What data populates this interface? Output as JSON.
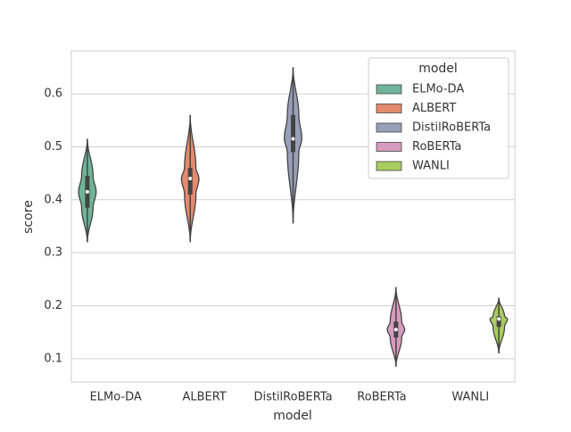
{
  "chart_data": {
    "type": "violin",
    "x_label": "model",
    "y_label": "score",
    "categories": [
      "ELMo-DA",
      "ALBERT",
      "DistilRoBERTa",
      "RoBERTa",
      "WANLI"
    ],
    "series": [
      {
        "name": "ELMo-DA",
        "color": "#6fb39a",
        "stats": {
          "min": 0.32,
          "q1": 0.385,
          "median": 0.415,
          "q3": 0.445,
          "max": 0.515
        }
      },
      {
        "name": "ALBERT",
        "color": "#e48a6e",
        "stats": {
          "min": 0.32,
          "q1": 0.41,
          "median": 0.44,
          "q3": 0.46,
          "max": 0.56
        }
      },
      {
        "name": "DistilRoBERTa",
        "color": "#98a0b8",
        "stats": {
          "min": 0.355,
          "q1": 0.49,
          "median": 0.515,
          "q3": 0.56,
          "max": 0.65
        }
      },
      {
        "name": "RoBERTa",
        "color": "#d79bbf",
        "stats": {
          "min": 0.085,
          "q1": 0.14,
          "median": 0.155,
          "q3": 0.17,
          "max": 0.235
        }
      },
      {
        "name": "WANLI",
        "color": "#a8cc5e",
        "stats": {
          "min": 0.11,
          "q1": 0.16,
          "median": 0.175,
          "q3": 0.18,
          "max": 0.215
        }
      }
    ],
    "ylim": [
      0.056,
      0.681
    ],
    "yticks": [
      0.1,
      0.2,
      0.3,
      0.4,
      0.5,
      0.6
    ],
    "grid": true,
    "legend": {
      "title": "model",
      "position": "upper right"
    }
  }
}
